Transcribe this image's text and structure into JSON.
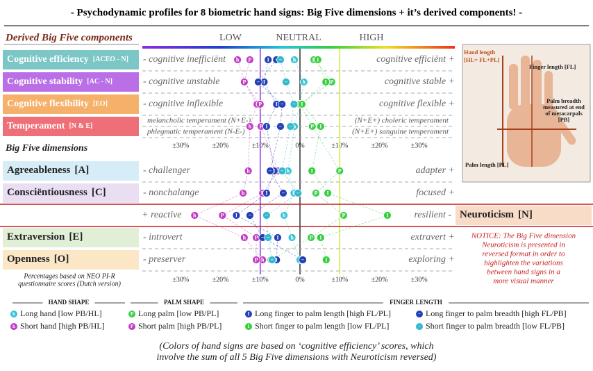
{
  "chart_data": {
    "type": "dot-profile",
    "title": "- Psychodynamic profiles for 8 biometric hand signs: Big Five dimensions + it’s derived components! -",
    "section_titles": [
      "Derived Big Five components",
      "Big Five dimensions"
    ],
    "scale_titles": [
      "LOW",
      "NEUTRAL",
      "HIGH"
    ],
    "categories": [
      "Cognitive efficiency",
      "Cognitive stability",
      "Cognitive flexibility",
      "Temperament",
      "Agreeableness",
      "Consciëntiousness",
      "Neuroticism",
      "Extraversion",
      "Openness"
    ],
    "category_notes": [
      "[ACEO - N]",
      "[AC - N]",
      "[EO]",
      "[N & E]",
      "[A]",
      "[C]",
      "[N]",
      "[E]",
      "[O]"
    ],
    "category_colors": [
      "#7cc6c6",
      "#bb6fe6",
      "#f5b06a",
      "#ef6f78",
      "#d6edf8",
      "#e9def2",
      "#f8dcc8",
      "#e1efd7",
      "#fbe7c6"
    ],
    "low_labels": [
      "- cognitive inefficiënt",
      "- cognitive unstable",
      "- cognitive inflexible",
      "melancholic temperament (N+E-)",
      "- challenger",
      "- nonchalange",
      "+ reactive",
      "- introvert",
      "- preserver"
    ],
    "high_labels": [
      "cognitive efficiënt +",
      "cognitive stable +",
      "cognitive flexible +",
      "(N+E+) choleric temperament",
      "adapter +",
      "focused +",
      "resilient -",
      "extravert +",
      "exploring +"
    ],
    "temperament_second_line": [
      "phlegmatic temperament (N-E-)",
      "(N+E+) sanguine temperament"
    ],
    "xlim": [
      -40,
      40
    ],
    "xticks": [
      {
        "value": -30,
        "label": "±30%"
      },
      {
        "value": -20,
        "label": "±20%"
      },
      {
        "value": -10,
        "label": "±10%"
      },
      {
        "value": 0,
        "label": "0%"
      },
      {
        "value": 10,
        "label": "±10%"
      },
      {
        "value": 20,
        "label": "±20%"
      },
      {
        "value": 30,
        "label": "±30%"
      }
    ],
    "series": [
      {
        "name": "Long hand [low PB/HL]",
        "symbol": "h",
        "color": "#36c3d6",
        "values": [
          -1.4,
          1,
          0,
          -1.4,
          -3,
          -1.5,
          -4,
          -2,
          0
        ]
      },
      {
        "name": "Short hand [high PB/HL]",
        "symbol": "h",
        "color": "#c03cc4",
        "values": [
          -15.7,
          -13.9,
          -10.8,
          -12.6,
          -13,
          -14.3,
          -26.5,
          -14,
          -9.4
        ]
      },
      {
        "name": "Long palm [low PB/PL]",
        "symbol": "P",
        "color": "#3ccf4a",
        "values": [
          3.5,
          8,
          0,
          3.1,
          10,
          4,
          11,
          2.8,
          -7.3
        ]
      },
      {
        "name": "Short palm [high PB/PL]",
        "symbol": "P",
        "color": "#c03cc4",
        "values": [
          -12.6,
          -14,
          -10,
          -9.8,
          -5.5,
          -9.4,
          -19.5,
          -11,
          -11
        ]
      },
      {
        "name": "Long finger to palm length [high FL/PL]",
        "symbol": "I",
        "color": "#2340b8",
        "values": [
          -8,
          -9,
          -5.9,
          -8.4,
          -6.5,
          -8.4,
          -16,
          -5.6,
          -5.9
        ]
      },
      {
        "name": "Short finger to palm length [low FL/PL]",
        "symbol": "I",
        "color": "#34cf3c",
        "values": [
          4.5,
          6.5,
          0.5,
          5.2,
          3,
          7,
          22,
          5.2,
          6.6
        ]
      },
      {
        "name": "Long finger to palm breadth [high FL/PB]",
        "symbol": "−",
        "color": "#2340b8",
        "values": [
          -5.9,
          -10.5,
          -4.5,
          -4.9,
          -7.5,
          -4.2,
          -12.6,
          -9.4,
          0.7
        ]
      },
      {
        "name": "Short finger to palm breadth [low FL/PB]",
        "symbol": "−",
        "color": "#34b8d0",
        "values": [
          -4.9,
          -3.5,
          -1.5,
          -2.4,
          -4.5,
          -0.5,
          -8.4,
          -8,
          -7
        ]
      }
    ],
    "legend_groups": [
      "HAND SHAPE",
      "PALM SHAPE",
      "FINGER LENGTH"
    ],
    "percent_note": [
      "Percentages based on NEO PI-R",
      "questionnaire scores (Dutch version)"
    ],
    "notice": [
      "NOTICE: The Big Five dimension",
      "Neuroticism is presented in",
      "reversed format in order to",
      "highlighten the variations",
      "between hand signs in a",
      "more visual manner"
    ],
    "hand_labels": [
      "Hand length",
      "[HL= FL+PL]",
      "Finger length [FL]",
      "Palm breadth",
      "measured at end",
      "of metacarpals",
      "[PB]",
      "Palm length [PL]"
    ],
    "footer": [
      "(Colors of hand signs are based on ‘cognitive efficiency’ scores, which",
      "involve the sum of all 5 Big Five dimensions with Neuroticism reversed)"
    ]
  }
}
